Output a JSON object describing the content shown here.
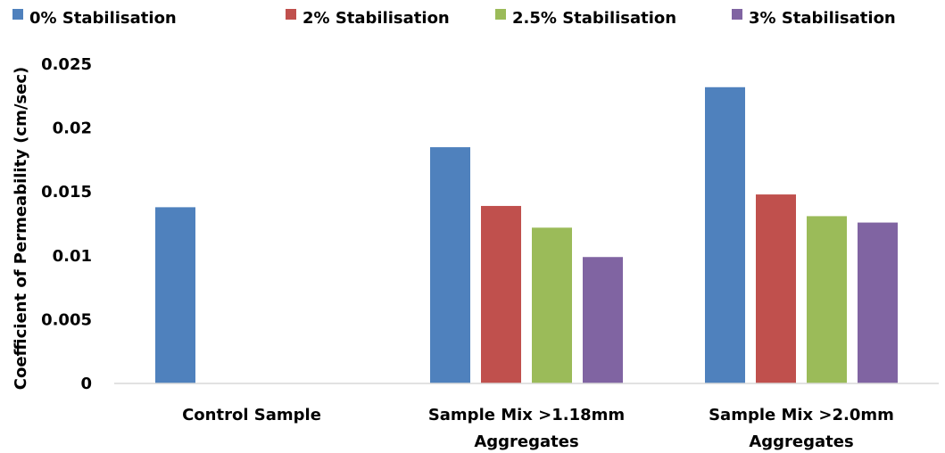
{
  "chart_data": {
    "type": "bar",
    "title": "",
    "xlabel": "",
    "ylabel": "Coefficient of Permeability (cm/sec)",
    "ylim": [
      0,
      0.025
    ],
    "yticks": [
      "0",
      "0.005",
      "0.01",
      "0.015",
      "0.02",
      "0.025"
    ],
    "ytick_values": [
      0,
      0.005,
      0.01,
      0.015,
      0.02,
      0.025
    ],
    "categories": [
      [
        "Control Sample"
      ],
      [
        "Sample Mix >1.18mm",
        "Aggregates"
      ],
      [
        "Sample Mix >2.0mm",
        "Aggregates"
      ]
    ],
    "legend_position": "top",
    "grid": false,
    "series": [
      {
        "name": "0% Stabilisation",
        "color": "#4f81bd",
        "values": [
          0.0138,
          0.0185,
          0.0232
        ]
      },
      {
        "name": "2% Stabilisation",
        "color": "#c0504d",
        "values": [
          null,
          0.0139,
          0.0148
        ]
      },
      {
        "name": "2.5% Stabilisation",
        "color": "#9bbb59",
        "values": [
          null,
          0.0122,
          0.0131
        ]
      },
      {
        "name": "3% Stabilisation",
        "color": "#8064a2",
        "values": [
          null,
          0.0099,
          0.0126
        ]
      }
    ]
  }
}
